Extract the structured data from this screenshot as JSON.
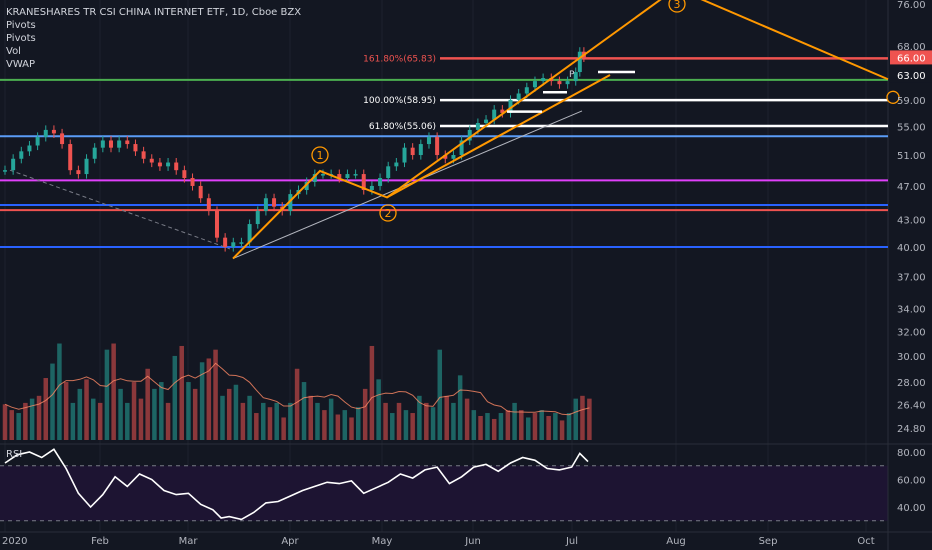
{
  "header": {
    "symbol_line": "KRANESHARES TR CSI CHINA INTERNET ETF, 1D, Cboe BZX",
    "studies": [
      "Pivots",
      "Pivots",
      "Vol",
      "VWAP"
    ],
    "rsi_label": "RSI"
  },
  "chart_data": {
    "type": "line",
    "price_axis": {
      "ticks": [
        "76.00",
        "68.00",
        "63.00",
        "59.00",
        "55.00",
        "51.00",
        "47.00",
        "43.00",
        "40.00",
        "37.00",
        "34.00",
        "32.00",
        "30.00",
        "28.00",
        "26.40",
        "24.80"
      ],
      "scale": "log",
      "range": [
        23.5,
        79
      ]
    },
    "rsi_axis": {
      "ticks": [
        "80.00",
        "60.00",
        "40.00"
      ],
      "overbought": 70,
      "oversold": 30
    },
    "time_axis": {
      "labels": [
        "2020",
        "Feb",
        "Mar",
        "Apr",
        "May",
        "Jun",
        "Jul",
        "Aug",
        "Sep",
        "Oct"
      ]
    },
    "price_badges": [
      {
        "text": "66.00",
        "color": "#ef5350"
      },
      {
        "text": "63.00",
        "color": "#131722"
      }
    ],
    "fib_levels": [
      {
        "label": "161.80%(65.83)",
        "value": 65.83,
        "color": "#ef5350"
      },
      {
        "label": "100.00%(58.95)",
        "value": 58.95,
        "color": "#ffffff"
      },
      {
        "label": "61.80%(55.06)",
        "value": 55.06,
        "color": "#ffffff"
      }
    ],
    "horizontal_levels": [
      {
        "value": 62.2,
        "color": "#4caf50"
      },
      {
        "value": 53.6,
        "color": "#5b9cf6"
      },
      {
        "value": 47.7,
        "color": "#e040fb"
      },
      {
        "value": 44.7,
        "color": "#2962ff"
      },
      {
        "value": 44.1,
        "color": "#ef5350"
      },
      {
        "value": 40.0,
        "color": "#2962ff"
      }
    ],
    "wave_labels": [
      "1",
      "2",
      "3"
    ],
    "pivot_marker": "P",
    "series": [
      {
        "name": "",
        "points": [
          [
            1.0,
            49.0
          ],
          [
            1.4,
            50.5
          ],
          [
            1.8,
            51.5
          ],
          [
            2.2,
            52.3
          ],
          [
            2.6,
            53.5
          ],
          [
            3.0,
            54.5
          ],
          [
            3.4,
            54.0
          ],
          [
            3.8,
            52.5
          ],
          [
            4.2,
            49.0
          ],
          [
            4.6,
            48.5
          ],
          [
            5.0,
            50.5
          ],
          [
            5.4,
            52.0
          ],
          [
            5.8,
            53.0
          ],
          [
            6.2,
            52.0
          ],
          [
            6.6,
            53.0
          ],
          [
            7.0,
            52.5
          ],
          [
            7.4,
            51.5
          ],
          [
            7.8,
            50.5
          ],
          [
            8.2,
            50.0
          ],
          [
            8.6,
            49.5
          ],
          [
            9.0,
            50.0
          ],
          [
            9.4,
            49.0
          ],
          [
            9.8,
            48.0
          ],
          [
            10.2,
            47.0
          ],
          [
            10.6,
            45.5
          ],
          [
            11.0,
            44.0
          ],
          [
            11.4,
            41.0
          ],
          [
            11.8,
            40.0
          ],
          [
            12.2,
            40.5
          ],
          [
            12.6,
            40.5
          ],
          [
            13.0,
            42.5
          ],
          [
            13.4,
            44.0
          ],
          [
            13.8,
            45.5
          ],
          [
            14.2,
            44.5
          ],
          [
            14.6,
            44.0
          ],
          [
            15.0,
            46.0
          ],
          [
            15.4,
            46.5
          ],
          [
            15.8,
            47.5
          ],
          [
            16.2,
            48.5
          ],
          [
            16.6,
            48.5
          ],
          [
            17.0,
            48.5
          ],
          [
            17.4,
            48.0
          ],
          [
            17.8,
            48.5
          ],
          [
            18.2,
            48.5
          ],
          [
            18.6,
            46.5
          ],
          [
            19.0,
            47.0
          ],
          [
            19.4,
            48.0
          ],
          [
            19.8,
            49.5
          ],
          [
            20.2,
            50.0
          ],
          [
            20.6,
            52.0
          ],
          [
            21.0,
            51.0
          ],
          [
            21.4,
            52.5
          ],
          [
            21.8,
            53.5
          ],
          [
            22.2,
            51.0
          ],
          [
            22.6,
            50.5
          ],
          [
            23.0,
            51.0
          ],
          [
            23.4,
            53.0
          ],
          [
            23.8,
            54.5
          ],
          [
            24.2,
            55.5
          ],
          [
            24.6,
            56.0
          ],
          [
            25.0,
            57.5
          ],
          [
            25.4,
            57.0
          ],
          [
            25.8,
            59.0
          ],
          [
            26.2,
            60.0
          ],
          [
            26.6,
            61.0
          ],
          [
            27.0,
            62.0
          ],
          [
            27.4,
            62.5
          ],
          [
            27.8,
            62.0
          ],
          [
            28.2,
            61.5
          ],
          [
            28.6,
            62.0
          ],
          [
            29.0,
            63.5
          ],
          [
            29.2,
            67.0
          ],
          [
            29.4,
            66.0
          ]
        ]
      }
    ],
    "volume_bars": [
      [
        1,
        26.4,
        0
      ],
      [
        1.33,
        26.0,
        0
      ],
      [
        1.67,
        25.8,
        1
      ],
      [
        2,
        26.5,
        0
      ],
      [
        2.33,
        26.8,
        1
      ],
      [
        2.67,
        27.0,
        0
      ],
      [
        3,
        28.3,
        0
      ],
      [
        3.33,
        29.4,
        1
      ],
      [
        3.67,
        31.0,
        1
      ],
      [
        4,
        28.0,
        0
      ],
      [
        4.33,
        26.5,
        1
      ],
      [
        4.67,
        27.5,
        1
      ],
      [
        5,
        28.2,
        0
      ],
      [
        5.33,
        26.8,
        1
      ],
      [
        5.67,
        26.5,
        0
      ],
      [
        6,
        30.5,
        1
      ],
      [
        6.33,
        31.0,
        0
      ],
      [
        6.67,
        27.5,
        1
      ],
      [
        7,
        26.5,
        1
      ],
      [
        7.33,
        28.0,
        0
      ],
      [
        7.67,
        26.8,
        0
      ],
      [
        8,
        29.0,
        0
      ],
      [
        8.33,
        27.5,
        1
      ],
      [
        8.67,
        28.0,
        1
      ],
      [
        9,
        26.5,
        0
      ],
      [
        9.33,
        30.0,
        1
      ],
      [
        9.67,
        30.8,
        0
      ],
      [
        10,
        28.0,
        1
      ],
      [
        10.33,
        27.5,
        0
      ],
      [
        10.67,
        29.5,
        1
      ],
      [
        11,
        29.8,
        0
      ],
      [
        11.33,
        30.5,
        0
      ],
      [
        11.67,
        27.0,
        1
      ],
      [
        12,
        27.5,
        0
      ],
      [
        12.33,
        27.8,
        1
      ],
      [
        12.67,
        26.5,
        0
      ],
      [
        13,
        27.0,
        1
      ],
      [
        13.33,
        25.8,
        0
      ],
      [
        13.67,
        26.5,
        1
      ],
      [
        14,
        26.2,
        0
      ],
      [
        14.33,
        26.5,
        1
      ],
      [
        14.67,
        25.5,
        0
      ],
      [
        15,
        26.5,
        1
      ],
      [
        15.33,
        29.0,
        0
      ],
      [
        15.67,
        28.0,
        1
      ],
      [
        16,
        27.0,
        0
      ],
      [
        16.33,
        26.5,
        1
      ],
      [
        16.67,
        26.0,
        0
      ],
      [
        17,
        26.8,
        1
      ],
      [
        17.33,
        25.7,
        0
      ],
      [
        17.67,
        26.0,
        1
      ],
      [
        18,
        25.5,
        0
      ],
      [
        18.33,
        26.2,
        1
      ],
      [
        18.67,
        27.5,
        0
      ],
      [
        19,
        30.8,
        0
      ],
      [
        19.33,
        28.2,
        1
      ],
      [
        19.67,
        26.5,
        0
      ],
      [
        20,
        25.8,
        1
      ],
      [
        20.33,
        26.5,
        0
      ],
      [
        20.67,
        26.0,
        1
      ],
      [
        21,
        25.8,
        0
      ],
      [
        21.33,
        27.0,
        1
      ],
      [
        21.67,
        26.5,
        0
      ],
      [
        22,
        26.2,
        1
      ],
      [
        22.33,
        30.5,
        1
      ],
      [
        22.67,
        27.0,
        0
      ],
      [
        23,
        26.5,
        1
      ],
      [
        23.33,
        28.5,
        1
      ],
      [
        23.67,
        26.8,
        0
      ],
      [
        24,
        26.0,
        1
      ],
      [
        24.33,
        25.6,
        0
      ],
      [
        24.67,
        25.8,
        1
      ],
      [
        25,
        25.4,
        0
      ],
      [
        25.33,
        25.8,
        1
      ],
      [
        25.67,
        26.0,
        0
      ],
      [
        26,
        26.5,
        1
      ],
      [
        26.33,
        26.0,
        0
      ],
      [
        26.67,
        25.5,
        1
      ],
      [
        27,
        25.8,
        0
      ],
      [
        27.33,
        26.0,
        1
      ],
      [
        27.67,
        25.6,
        0
      ],
      [
        28,
        25.8,
        1
      ],
      [
        28.33,
        25.3,
        0
      ],
      [
        28.67,
        25.8,
        1
      ],
      [
        29,
        26.8,
        1
      ],
      [
        29.33,
        27.0,
        0
      ],
      [
        29.67,
        26.8,
        0
      ]
    ],
    "rsi_series": [
      [
        1,
        72
      ],
      [
        1.6,
        78
      ],
      [
        2.2,
        80
      ],
      [
        2.8,
        76
      ],
      [
        3.4,
        82
      ],
      [
        4,
        68
      ],
      [
        4.6,
        50
      ],
      [
        5.2,
        40
      ],
      [
        5.8,
        49
      ],
      [
        6.4,
        62
      ],
      [
        7,
        55
      ],
      [
        7.6,
        64
      ],
      [
        8.2,
        60
      ],
      [
        8.8,
        52
      ],
      [
        9.4,
        49
      ],
      [
        10,
        50
      ],
      [
        10.6,
        42
      ],
      [
        11.2,
        38
      ],
      [
        11.6,
        32
      ],
      [
        12,
        33
      ],
      [
        12.6,
        31
      ],
      [
        13.2,
        36
      ],
      [
        13.8,
        43
      ],
      [
        14.4,
        44
      ],
      [
        15,
        48
      ],
      [
        15.6,
        52
      ],
      [
        16.2,
        55
      ],
      [
        16.8,
        58
      ],
      [
        17.4,
        57
      ],
      [
        18,
        59
      ],
      [
        18.6,
        50
      ],
      [
        19.2,
        54
      ],
      [
        19.8,
        58
      ],
      [
        20.4,
        64
      ],
      [
        21,
        61
      ],
      [
        21.6,
        67
      ],
      [
        22.2,
        69
      ],
      [
        22.8,
        57
      ],
      [
        23.4,
        62
      ],
      [
        24,
        69
      ],
      [
        24.6,
        71
      ],
      [
        25.2,
        66
      ],
      [
        25.8,
        72
      ],
      [
        26.4,
        76
      ],
      [
        27,
        74
      ],
      [
        27.6,
        68
      ],
      [
        28.2,
        67
      ],
      [
        28.8,
        69
      ],
      [
        29.2,
        79
      ],
      [
        29.6,
        73
      ]
    ]
  }
}
